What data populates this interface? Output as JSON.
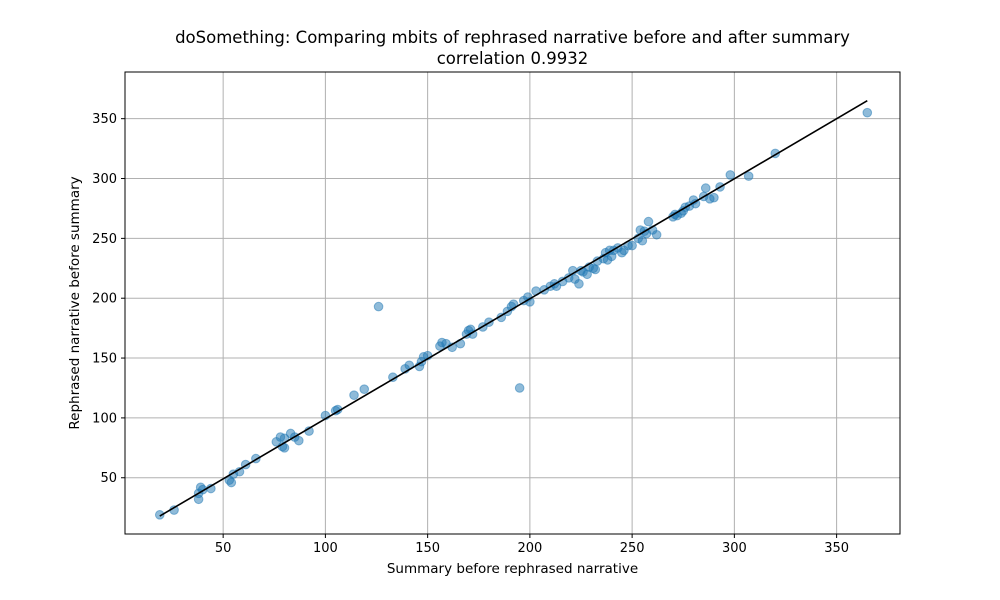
{
  "chart_data": {
    "type": "scatter",
    "title": "doSomething: Comparing mbits of rephrased narrative before and after summary",
    "subtitle": "correlation 0.9932",
    "xlabel": "Summary before rephrased narrative",
    "ylabel": "Rephrased narrative before summary",
    "xlim": [
      2,
      381
    ],
    "ylim": [
      3,
      389
    ],
    "xticks": [
      50,
      100,
      150,
      200,
      250,
      300,
      350
    ],
    "yticks": [
      50,
      100,
      150,
      200,
      250,
      300,
      350
    ],
    "grid": true,
    "colors": {
      "points": "#1f77b4",
      "line": "#000000",
      "grid": "#b0b0b0"
    },
    "fit_line": {
      "x": [
        19,
        365
      ],
      "y": [
        18,
        365
      ]
    },
    "points": {
      "x": [
        19,
        26,
        38,
        39,
        38,
        40,
        44,
        53,
        54,
        55,
        58,
        61,
        66,
        76,
        78,
        79,
        80,
        80,
        83,
        85,
        87,
        92,
        100,
        105,
        106,
        114,
        119,
        126,
        133,
        139,
        141,
        146,
        147,
        148,
        150,
        156,
        157,
        159,
        162,
        166,
        169,
        170,
        171,
        172,
        177,
        180,
        186,
        189,
        191,
        192,
        197,
        199,
        200,
        203,
        207,
        210,
        212,
        213,
        216,
        219,
        221,
        222,
        224,
        225,
        226,
        228,
        229,
        231,
        232,
        233,
        236,
        237,
        238,
        239,
        240,
        241,
        243,
        245,
        246,
        248,
        250,
        253,
        254,
        255,
        256,
        257,
        258,
        260,
        262,
        270,
        271,
        272,
        274,
        275,
        276,
        278,
        280,
        281,
        285,
        286,
        288,
        290,
        293,
        298,
        307,
        320,
        365,
        195
      ],
      "y": [
        19,
        23,
        37,
        42,
        32,
        40,
        41,
        48,
        46,
        53,
        55,
        61,
        66,
        80,
        84,
        76,
        75,
        83,
        87,
        84,
        81,
        89,
        102,
        106,
        107,
        119,
        124,
        193,
        134,
        141,
        144,
        143,
        147,
        151,
        152,
        160,
        163,
        162,
        159,
        162,
        170,
        173,
        174,
        170,
        176,
        180,
        184,
        189,
        193,
        195,
        198,
        201,
        197,
        206,
        207,
        210,
        212,
        210,
        214,
        217,
        223,
        216,
        212,
        223,
        222,
        220,
        226,
        225,
        224,
        231,
        233,
        238,
        232,
        240,
        235,
        240,
        242,
        238,
        240,
        244,
        244,
        250,
        257,
        248,
        256,
        254,
        264,
        257,
        253,
        268,
        270,
        269,
        271,
        273,
        276,
        277,
        282,
        279,
        285,
        292,
        283,
        284,
        293,
        303,
        302,
        321,
        355,
        125
      ]
    }
  }
}
